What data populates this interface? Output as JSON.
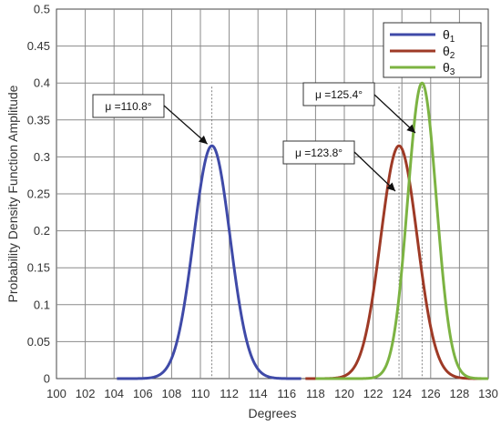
{
  "chart_data": {
    "type": "line",
    "xlabel": "Degrees",
    "ylabel": "Probability Density Function Amplitude",
    "xlim": [
      100,
      130
    ],
    "ylim": [
      0,
      0.5
    ],
    "x_ticks": [
      100,
      102,
      104,
      106,
      108,
      110,
      112,
      114,
      116,
      118,
      120,
      122,
      124,
      126,
      128,
      130
    ],
    "y_ticks": [
      0,
      0.05,
      0.1,
      0.15,
      0.2,
      0.25,
      0.3,
      0.35,
      0.4,
      0.45,
      0.5
    ],
    "y_tick_labels": [
      "0",
      "0.05",
      "0.1",
      "0.15",
      "0.2",
      "0.25",
      "0.3",
      "0.35",
      "0.4",
      "0.45",
      "0.5"
    ],
    "grid": true,
    "legend_position": "top-right",
    "series": [
      {
        "name": "θ",
        "subscript": "1",
        "mean": 110.8,
        "peak": 0.315,
        "x_range": [
          104.2,
          117.0
        ],
        "color": "#3f4aa8"
      },
      {
        "name": "θ",
        "subscript": "2",
        "mean": 123.8,
        "peak": 0.315,
        "x_range": [
          117.3,
          130.0
        ],
        "color": "#9e3a26"
      },
      {
        "name": "θ",
        "subscript": "3",
        "mean": 125.4,
        "peak": 0.4,
        "x_range": [
          118.0,
          130.0
        ],
        "color": "#7cb342"
      }
    ],
    "annotations": [
      {
        "text": "μ =110.8°",
        "target": [
          110.8,
          0.315
        ]
      },
      {
        "text": "μ =123.8°",
        "target": [
          123.8,
          0.315
        ]
      },
      {
        "text": "μ =125.4°",
        "target": [
          125.4,
          0.4
        ]
      }
    ],
    "mean_lines": [
      110.8,
      123.8,
      125.4
    ]
  }
}
